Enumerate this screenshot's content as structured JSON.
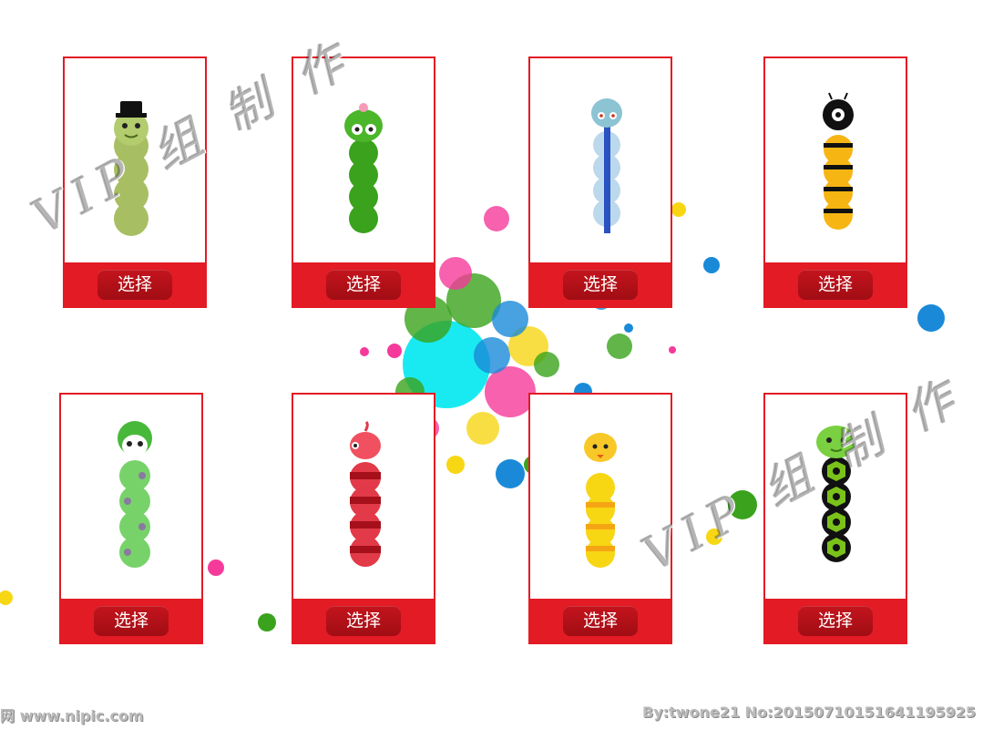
{
  "watermark": {
    "top": "VIP 组 制 作",
    "bottom": "VIP 组 制 作"
  },
  "footer": {
    "left": "网 www.nipic.com",
    "right": "By:twone21 No:20150710151641195925"
  },
  "colors": {
    "frame": "#e21b24",
    "button": "#b3111a",
    "button_text": "#ffffff"
  },
  "cards": [
    {
      "character": "green-caterpillar-with-top-hat",
      "button": "选择"
    },
    {
      "character": "green-snake-with-flower",
      "button": "选择"
    },
    {
      "character": "blue-striped-snake",
      "button": "选择"
    },
    {
      "character": "black-yellow-bee-caterpillar",
      "button": "选择"
    },
    {
      "character": "light-green-snake-with-helmet",
      "button": "选择"
    },
    {
      "character": "red-striped-snake",
      "button": "选择"
    },
    {
      "character": "yellow-chick-caterpillar",
      "button": "选择"
    },
    {
      "character": "green-hexagon-caterpillar",
      "button": "选择"
    }
  ]
}
